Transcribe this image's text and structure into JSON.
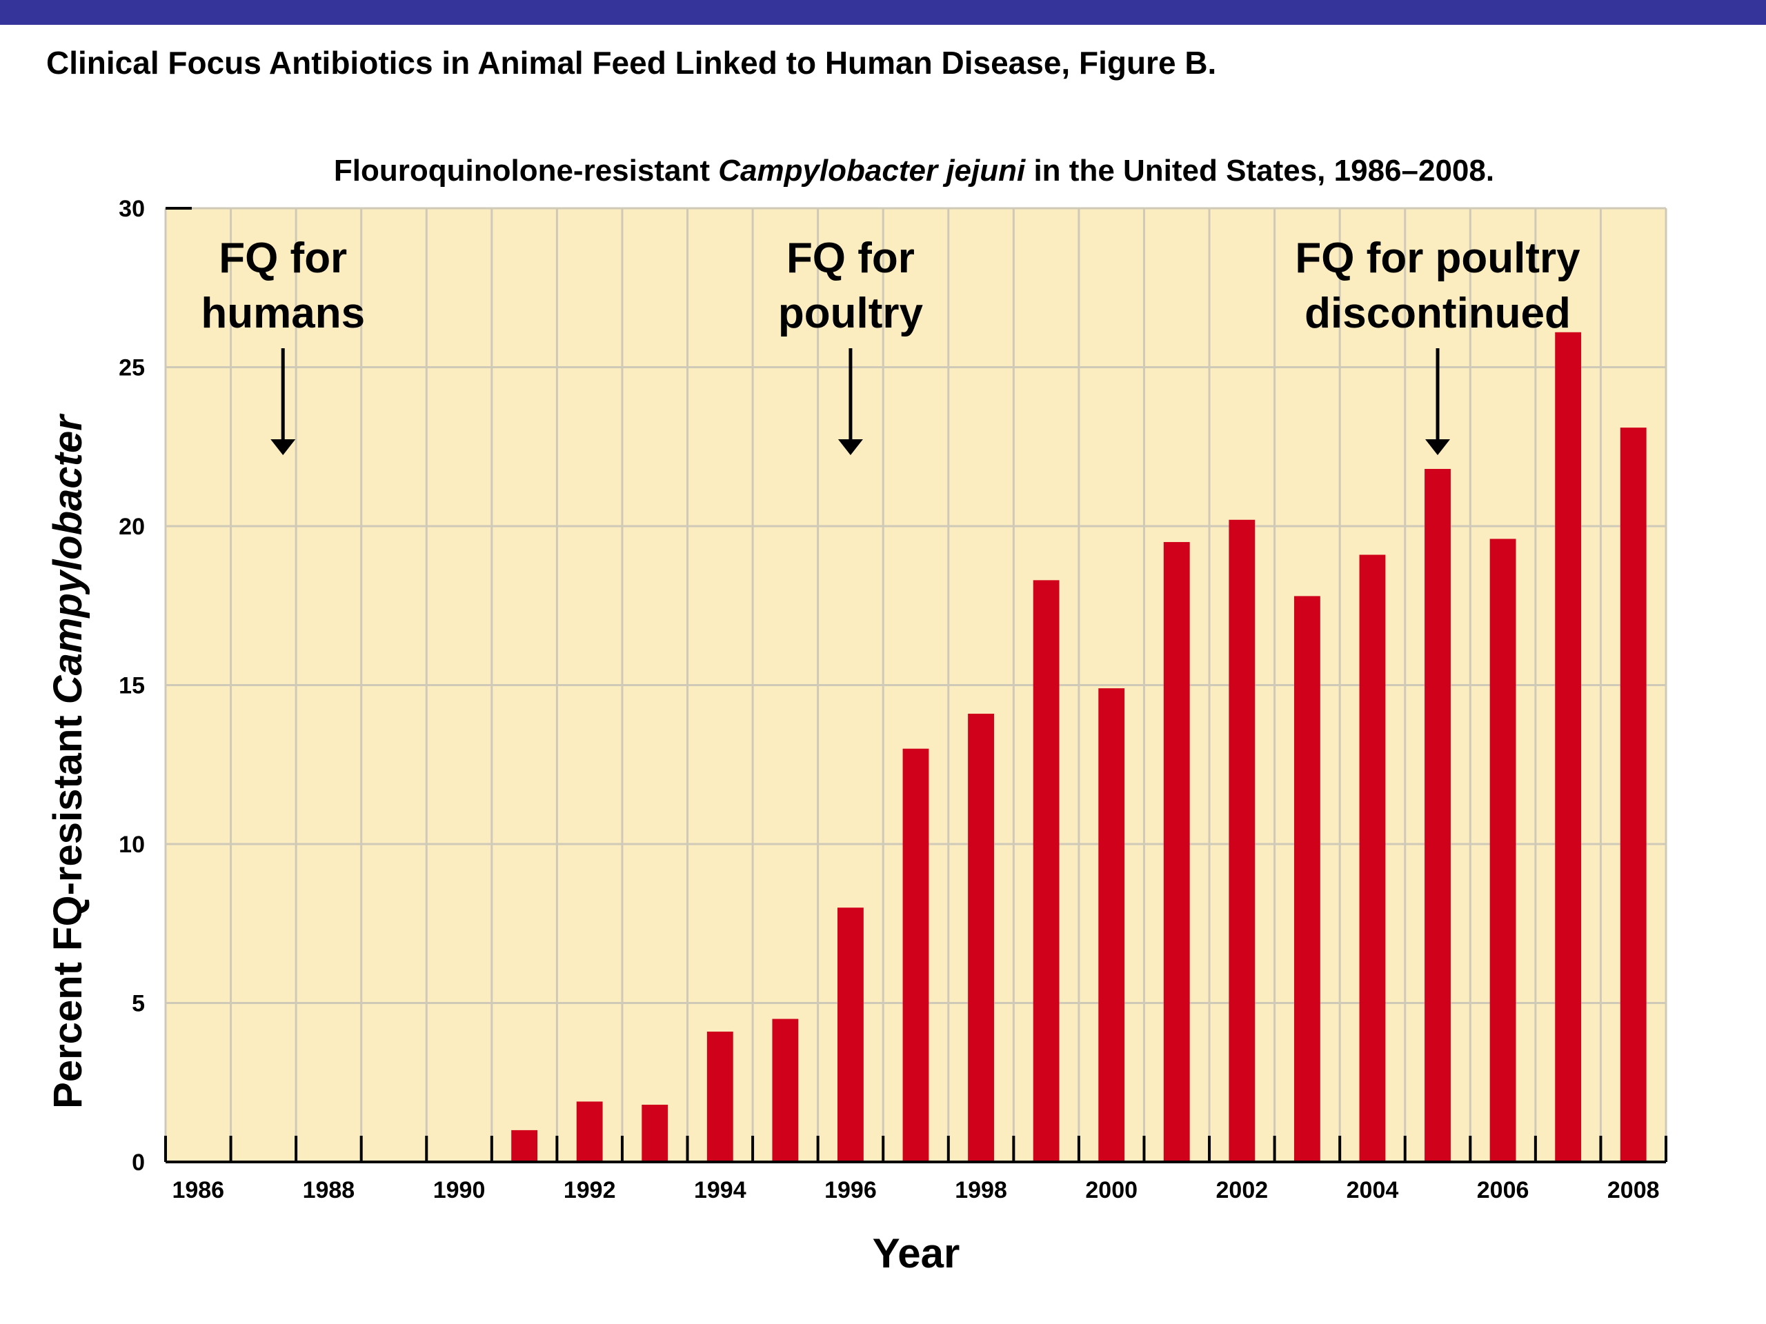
{
  "page": {
    "header_bar_color": "#34349a",
    "title": "Clinical Focus Antibiotics in Animal Feed Linked to Human Disease, Figure B."
  },
  "chart_data": {
    "type": "bar",
    "title_parts": [
      {
        "text": "Flouroquinolone-resistant ",
        "italic": false
      },
      {
        "text": "Campylobacter jejuni",
        "italic": true
      },
      {
        "text": " in the United States, 1986–2008.",
        "italic": false
      }
    ],
    "xlabel": "Year",
    "ylabel_parts": [
      {
        "text": "Percent FQ-resistant ",
        "italic": false
      },
      {
        "text": "Campylobacter",
        "italic": true
      }
    ],
    "categories": [
      1986,
      1987,
      1988,
      1989,
      1990,
      1991,
      1992,
      1993,
      1994,
      1995,
      1996,
      1997,
      1998,
      1999,
      2000,
      2001,
      2002,
      2003,
      2004,
      2005,
      2006,
      2007,
      2008
    ],
    "values": [
      0,
      0,
      0,
      0,
      0,
      1.0,
      1.9,
      1.8,
      4.1,
      4.5,
      8.0,
      13.0,
      14.1,
      18.3,
      14.9,
      19.5,
      20.2,
      17.8,
      19.1,
      21.8,
      19.6,
      26.1,
      23.1
    ],
    "x_tick_labels": [
      "1986",
      "1988",
      "1990",
      "1992",
      "1994",
      "1996",
      "1998",
      "2000",
      "2002",
      "2004",
      "2006",
      "2008"
    ],
    "y_ticks": [
      0,
      5,
      10,
      15,
      20,
      25,
      30
    ],
    "ylim": [
      0,
      30
    ],
    "grid": true,
    "plot_background": "#fcedc1",
    "grid_color": "#cfc9b8",
    "bar_color": "#d0021b",
    "annotations": [
      {
        "lines": [
          "FQ for",
          "humans"
        ],
        "x": 1987.3
      },
      {
        "lines": [
          "FQ for",
          "poultry"
        ],
        "x": 1996.0
      },
      {
        "lines": [
          "FQ for poultry",
          "discontinued"
        ],
        "x": 2005.0
      }
    ]
  }
}
